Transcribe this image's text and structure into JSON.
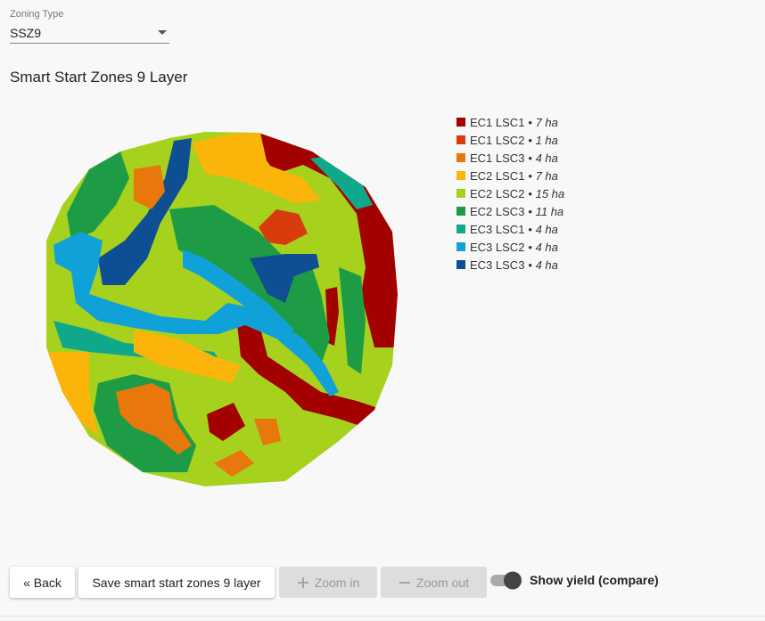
{
  "zoning_field": {
    "label": "Zoning Type",
    "value": "SSZ9"
  },
  "title": "Smart Start Zones 9 Layer",
  "legend": [
    {
      "name": "EC1 LSC1",
      "area": "7 ha",
      "color": "#a30000"
    },
    {
      "name": "EC1 LSC2",
      "area": "1 ha",
      "color": "#d93c0c"
    },
    {
      "name": "EC1 LSC3",
      "area": "4 ha",
      "color": "#e8770c"
    },
    {
      "name": "EC2 LSC1",
      "area": "7 ha",
      "color": "#fbb40a"
    },
    {
      "name": "EC2 LSC2",
      "area": "15 ha",
      "color": "#a6d11d"
    },
    {
      "name": "EC2 LSC3",
      "area": "11 ha",
      "color": "#1d9c45"
    },
    {
      "name": "EC3 LSC1",
      "area": "4 ha",
      "color": "#10a88a"
    },
    {
      "name": "EC3 LSC2",
      "area": "4 ha",
      "color": "#11a1d9"
    },
    {
      "name": "EC3 LSC3",
      "area": "4 ha",
      "color": "#0e4f94"
    }
  ],
  "buttons": {
    "back": "« Back",
    "save": "Save smart start zones 9 layer",
    "zoom_in": "Zoom in",
    "zoom_out": "Zoom out"
  },
  "toggle": {
    "label": "Show yield (compare)"
  }
}
